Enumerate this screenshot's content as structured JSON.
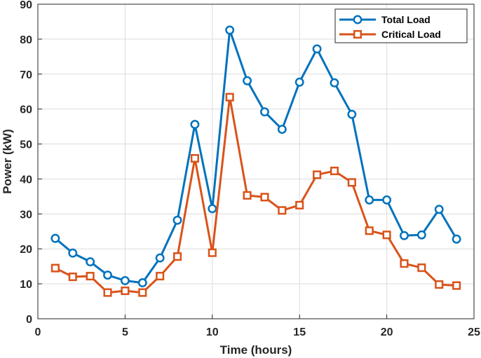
{
  "chart_data": {
    "type": "line",
    "title": "",
    "xlabel": "Time (hours)",
    "ylabel": "Power (kW)",
    "xlim": [
      0,
      25
    ],
    "ylim": [
      0,
      90
    ],
    "xticks": [
      "0",
      "5",
      "10",
      "15",
      "20",
      "25"
    ],
    "yticks": [
      "0",
      "10",
      "20",
      "30",
      "40",
      "50",
      "60",
      "70",
      "80",
      "90"
    ],
    "grid": true,
    "legend_position": "top-right",
    "x": [
      1,
      2,
      3,
      4,
      5,
      6,
      7,
      8,
      9,
      10,
      11,
      12,
      13,
      14,
      15,
      16,
      17,
      18,
      19,
      20,
      21,
      22,
      23,
      24
    ],
    "series": [
      {
        "name": "Total Load",
        "color": "#0072BD",
        "marker": "circle",
        "values": [
          23.0,
          18.8,
          16.3,
          12.5,
          10.9,
          10.3,
          17.4,
          28.2,
          55.6,
          31.5,
          82.6,
          68.1,
          59.2,
          54.2,
          67.7,
          77.2,
          67.5,
          58.5,
          34.0,
          34.0,
          23.8,
          24.0,
          31.3,
          22.8
        ]
      },
      {
        "name": "Critical Load",
        "color": "#D95319",
        "marker": "square",
        "values": [
          14.5,
          12.0,
          12.2,
          7.5,
          8.0,
          7.5,
          12.2,
          17.8,
          45.9,
          18.9,
          63.4,
          35.3,
          34.8,
          31.0,
          32.5,
          41.2,
          42.3,
          39.0,
          25.2,
          24.0,
          15.8,
          14.6,
          9.8,
          9.5
        ]
      }
    ]
  }
}
